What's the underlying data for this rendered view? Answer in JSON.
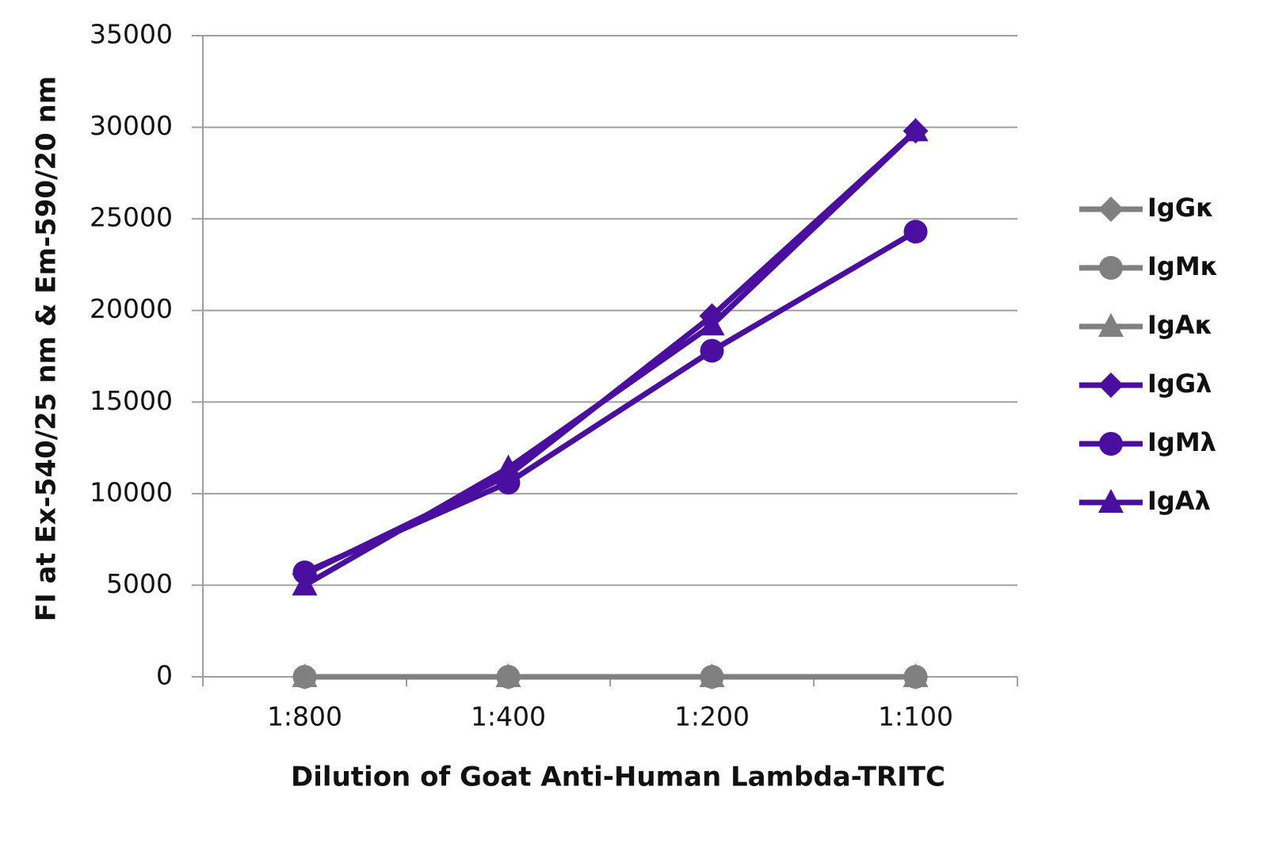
{
  "chart_data": {
    "type": "line",
    "x_label": "Dilution of Goat Anti-Human Lambda-TRITC",
    "y_label": "FI at Ex-540/25 nm & Em-590/20 nm",
    "categories": [
      "1:800",
      "1:400",
      "1:200",
      "1:100"
    ],
    "series": [
      {
        "name": "IgGκ",
        "color": "#808080",
        "marker": "diamond",
        "values": [
          0,
          0,
          0,
          0
        ]
      },
      {
        "name": "IgMκ",
        "color": "#808080",
        "marker": "circle",
        "values": [
          0,
          0,
          0,
          0
        ]
      },
      {
        "name": "IgAκ",
        "color": "#808080",
        "marker": "triangle",
        "values": [
          0,
          0,
          0,
          0
        ]
      },
      {
        "name": "IgGλ",
        "color": "#4a0f9e",
        "marker": "diamond",
        "values": [
          5600,
          11000,
          19700,
          29800
        ]
      },
      {
        "name": "IgMλ",
        "color": "#4a0f9e",
        "marker": "circle",
        "values": [
          5700,
          10600,
          17800,
          24300
        ]
      },
      {
        "name": "IgAλ",
        "color": "#4a0f9e",
        "marker": "triangle",
        "values": [
          5000,
          11400,
          19200,
          29800
        ]
      }
    ],
    "ylim": [
      0,
      35000
    ],
    "yticks": [
      0,
      5000,
      10000,
      15000,
      20000,
      25000,
      30000,
      35000
    ],
    "grid": true,
    "legend": "right"
  }
}
